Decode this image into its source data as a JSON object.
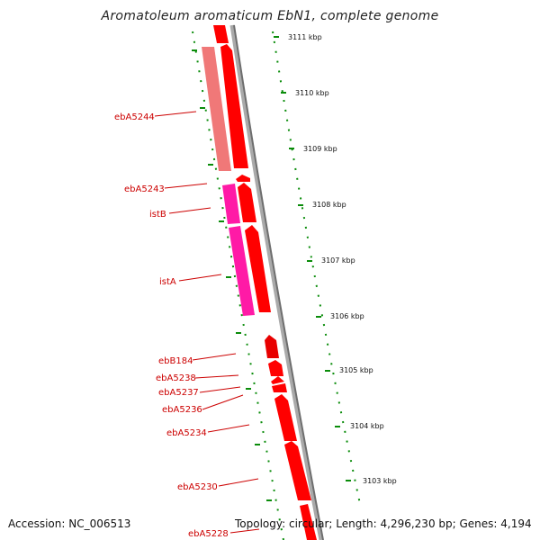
{
  "title": "Aromatoleum aromaticum EbN1, complete genome",
  "accession": "Accession: NC_006513",
  "summary": "Topology: circular; Length: 4,296,230 bp; Genes: 4,194",
  "colors": {
    "gene": "#ff0000",
    "gene_dark": "#c80000",
    "pseudo": "#f07878",
    "transposase": "#ff1aa6",
    "ruler": "#0a8c0a",
    "label": "#cc0000",
    "backbone": "#888888"
  },
  "ruler_labels": [
    "3111 kbp",
    "3110 kbp",
    "3109 kbp",
    "3108 kbp",
    "3107 kbp",
    "3106 kbp",
    "3105 kbp",
    "3104 kbp",
    "3103 kbp"
  ],
  "gene_labels": [
    "ebA5244",
    "ebA5243",
    "istB",
    "istA",
    "ebB184",
    "ebA5238",
    "ebA5237",
    "ebA5236",
    "ebA5234",
    "ebA5230",
    "ebA5228"
  ]
}
